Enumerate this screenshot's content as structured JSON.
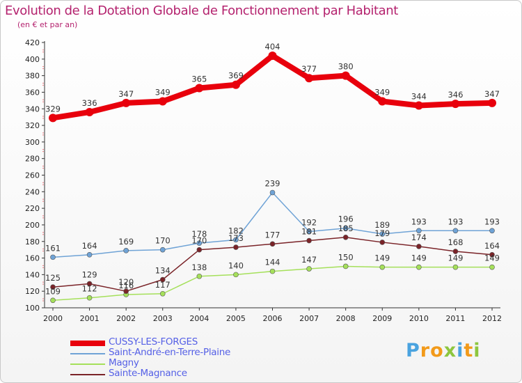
{
  "header": {
    "title": "Evolution de la Dotation Globale de Fonctionnement par Habitant",
    "subtitle": "(en € et par an)"
  },
  "chart_data": {
    "type": "line",
    "title": "Evolution de la Dotation Globale de Fonctionnement par Habitant",
    "subtitle": "(en € et par an)",
    "xlabel": "",
    "ylabel": "",
    "ylim": [
      100,
      420
    ],
    "ytick_step": 20,
    "grid": false,
    "legend_position": "bottom-left",
    "categories": [
      "2000",
      "2001",
      "2002",
      "2003",
      "2004",
      "2005",
      "2006",
      "2007",
      "2008",
      "2009",
      "2010",
      "2011",
      "2012"
    ],
    "series": [
      {
        "name": "CUSSY-LES-FORGES",
        "color": "#e8000c",
        "values": [
          329,
          336,
          347,
          349,
          365,
          369,
          404,
          377,
          380,
          349,
          344,
          346,
          347
        ]
      },
      {
        "name": "Saint-André-en-Terre-Plaine",
        "color": "#6fa3d6",
        "values": [
          161,
          164,
          169,
          170,
          178,
          182,
          239,
          192,
          196,
          189,
          193,
          193,
          193
        ]
      },
      {
        "name": "Magny",
        "color": "#a5e05a",
        "values": [
          109,
          112,
          116,
          117,
          138,
          140,
          144,
          147,
          150,
          149,
          149,
          149,
          149
        ]
      },
      {
        "name": "Sainte-Magnance",
        "color": "#7a2328",
        "values": [
          125,
          129,
          120,
          134,
          170,
          173,
          177,
          181,
          185,
          179,
          174,
          168,
          164
        ]
      }
    ]
  },
  "logo": {
    "p": "P",
    "r": "r",
    "o": "o",
    "x": "x",
    "i": "i",
    "t": "t",
    "i2": "i"
  }
}
